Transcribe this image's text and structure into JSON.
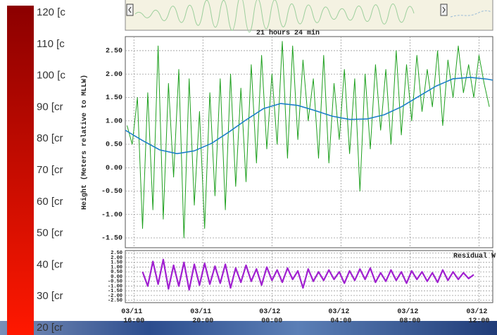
{
  "legend": {
    "labels": [
      "120 [c",
      "110 [c",
      "100 [c",
      "90 [cr",
      "80 [cr",
      "70 [cr",
      "60 [cr",
      "50 [cr",
      "40 [cr",
      "30 [cr",
      "20 [cr"
    ],
    "colors": [
      "#8c0000",
      "#ff1800"
    ]
  },
  "chart_data": [
    {
      "type": "line",
      "title": "21 hours 24 min",
      "y_label": "Height (Meters relative to MLLW)",
      "xlim": [
        -0.5,
        20.8
      ],
      "ylim": [
        -1.71,
        2.8
      ],
      "grid": true,
      "xticks": [
        0,
        4,
        8,
        12,
        16,
        20
      ],
      "yticks": [
        {
          "value": 2.5,
          "label": "2.50"
        },
        {
          "value": 2.0,
          "label": "2.00"
        },
        {
          "value": 1.5,
          "label": "1.50"
        },
        {
          "value": 1.0,
          "label": "1.00"
        },
        {
          "value": 0.5,
          "label": "0.50"
        },
        {
          "value": 0,
          "label": "0.00"
        },
        {
          "value": -0.5,
          "label": "-0.50"
        },
        {
          "value": -1.0,
          "label": "-1.00"
        },
        {
          "value": -1.5,
          "label": "-1.50"
        }
      ],
      "series": [
        {
          "color": "#1fa01f",
          "x": [
            -0.4,
            -0.1,
            0.2,
            0.5,
            0.8,
            1.1,
            1.4,
            1.7,
            2.0,
            2.3,
            2.6,
            2.9,
            3.2,
            3.5,
            3.8,
            4.1,
            4.4,
            4.7,
            5.0,
            5.3,
            5.6,
            5.9,
            6.2,
            6.5,
            6.8,
            7.1,
            7.4,
            7.7,
            8.0,
            8.3,
            8.6,
            8.9,
            9.2,
            9.5,
            9.8,
            10.1,
            10.4,
            10.7,
            11.0,
            11.3,
            11.6,
            11.9,
            12.2,
            12.5,
            12.8,
            13.1,
            13.4,
            13.7,
            14.0,
            14.3,
            14.6,
            14.9,
            15.2,
            15.5,
            15.8,
            16.1,
            16.4,
            16.7,
            17.0,
            17.3,
            17.6,
            17.9,
            18.2,
            18.5,
            18.8,
            19.1,
            19.4,
            19.7,
            20.0,
            20.3,
            20.6
          ],
          "values": [
            0.9,
            0.5,
            1.5,
            -1.3,
            1.6,
            -0.9,
            2.6,
            -1.1,
            1.8,
            -0.2,
            2.1,
            -1.5,
            1.9,
            -0.8,
            1.2,
            -1.3,
            1.6,
            -0.6,
            1.9,
            -0.9,
            2.0,
            -0.4,
            1.7,
            -0.3,
            2.2,
            0.1,
            2.4,
            0.4,
            2.0,
            0.5,
            2.7,
            0.2,
            2.6,
            0.6,
            2.3,
            1.0,
            1.9,
            0.2,
            2.4,
            0.1,
            1.8,
            0.6,
            2.1,
            0.3,
            1.9,
            -0.5,
            2.0,
            0.4,
            2.2,
            0.8,
            2.1,
            0.5,
            2.5,
            0.7,
            2.2,
            1.0,
            2.4,
            1.2,
            2.1,
            1.3,
            2.5,
            0.9,
            2.3,
            1.5,
            2.6,
            1.6,
            2.2,
            1.5,
            2.4,
            1.8,
            1.3
          ]
        },
        {
          "color": "#1c7fc8",
          "x": [
            -0.5,
            0.5,
            1.5,
            2.5,
            3.5,
            4.5,
            5.5,
            6.5,
            7.5,
            8.5,
            9.5,
            10.5,
            11.5,
            12.5,
            13.5,
            14.5,
            15.5,
            16.5,
            17.5,
            18.5,
            19.5,
            20.5,
            20.8
          ],
          "values": [
            0.8,
            0.58,
            0.38,
            0.3,
            0.36,
            0.52,
            0.76,
            1.02,
            1.26,
            1.37,
            1.33,
            1.22,
            1.1,
            1.03,
            1.04,
            1.13,
            1.3,
            1.52,
            1.74,
            1.9,
            1.93,
            1.89,
            1.87
          ]
        }
      ]
    },
    {
      "type": "line",
      "title": "Residual W",
      "xlim": [
        -0.5,
        20.8
      ],
      "ylim": [
        -2.75,
        2.75
      ],
      "grid": true,
      "xticks": [
        {
          "value": 0,
          "label": "03/11 16:00"
        },
        {
          "value": 4,
          "label": "03/11 20:00"
        },
        {
          "value": 8,
          "label": "03/12 00:00"
        },
        {
          "value": 12,
          "label": "03/12 04:00"
        },
        {
          "value": 16,
          "label": "03/12 08:00"
        },
        {
          "value": 20,
          "label": "03/12 12:00"
        }
      ],
      "yticks": [
        {
          "value": 2.5,
          "label": "2.50"
        },
        {
          "value": 2.0,
          "label": "2.00"
        },
        {
          "value": 1.5,
          "label": "1.50"
        },
        {
          "value": 1.0,
          "label": "1.00"
        },
        {
          "value": 0.5,
          "label": "0.50"
        },
        {
          "value": 0,
          "label": "0.00"
        },
        {
          "value": -0.5,
          "label": "-0.50"
        },
        {
          "value": -1.0,
          "label": "-1.00"
        },
        {
          "value": -1.5,
          "label": "-1.50"
        },
        {
          "value": -2.0,
          "label": "-2.00"
        },
        {
          "value": -2.5,
          "label": "-2.50"
        }
      ],
      "series": [
        {
          "color": "#a020d0",
          "x": [
            0.5,
            0.8,
            1.1,
            1.4,
            1.7,
            2.0,
            2.3,
            2.6,
            2.9,
            3.2,
            3.5,
            3.8,
            4.1,
            4.4,
            4.7,
            5.0,
            5.3,
            5.6,
            5.9,
            6.2,
            6.5,
            6.8,
            7.1,
            7.4,
            7.7,
            8.0,
            8.3,
            8.6,
            8.9,
            9.2,
            9.5,
            9.8,
            10.1,
            10.4,
            10.7,
            11.0,
            11.3,
            11.6,
            11.9,
            12.2,
            12.5,
            12.8,
            13.1,
            13.4,
            13.7,
            14.0,
            14.3,
            14.6,
            14.9,
            15.2,
            15.5,
            15.8,
            16.1,
            16.4,
            16.7,
            17.0,
            17.3,
            17.6,
            17.9,
            18.2,
            18.5,
            18.8,
            19.1,
            19.4,
            19.7
          ],
          "values": [
            0.5,
            -1.0,
            1.6,
            -0.8,
            1.8,
            -1.3,
            1.2,
            -1.0,
            1.5,
            -1.4,
            1.3,
            -0.9,
            1.4,
            -0.8,
            1.1,
            -0.7,
            1.3,
            -1.2,
            0.9,
            -0.6,
            1.2,
            -0.5,
            0.8,
            -0.9,
            1.0,
            -0.4,
            0.7,
            -0.6,
            0.9,
            -0.3,
            0.6,
            -1.2,
            0.8,
            -0.5,
            0.5,
            -0.4,
            0.7,
            -0.3,
            0.5,
            -0.7,
            0.6,
            -0.4,
            0.8,
            -0.3,
            0.9,
            -0.6,
            0.4,
            -0.5,
            0.7,
            -0.4,
            0.5,
            -0.7,
            0.6,
            -0.3,
            0.5,
            -0.5,
            0.4,
            -0.6,
            0.7,
            -0.4,
            0.5,
            -0.3,
            0.4,
            -0.2,
            0.2
          ]
        }
      ]
    }
  ]
}
